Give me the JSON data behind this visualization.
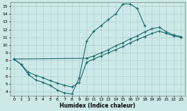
{
  "xlabel": "Humidex (Indice chaleur)",
  "xlim": [
    -0.5,
    23.5
  ],
  "ylim": [
    3.5,
    15.5
  ],
  "xticks": [
    0,
    1,
    2,
    3,
    4,
    5,
    6,
    7,
    8,
    9,
    10,
    11,
    12,
    13,
    14,
    15,
    16,
    17,
    18,
    19,
    20,
    21,
    22,
    23
  ],
  "yticks": [
    4,
    5,
    6,
    7,
    8,
    9,
    10,
    11,
    12,
    13,
    14,
    15
  ],
  "bg_color": "#cce8e8",
  "grid_color": "#b0d0d0",
  "line_color": "#1a6b6b",
  "line1_x": [
    0,
    1,
    2,
    3,
    4,
    5,
    6,
    7,
    8,
    9,
    10,
    11,
    12,
    13,
    14,
    15,
    16,
    17,
    18
  ],
  "line1_y": [
    8.2,
    7.5,
    6.2,
    5.5,
    5.2,
    4.8,
    4.2,
    3.8,
    3.7,
    5.8,
    10.5,
    11.8,
    12.5,
    13.3,
    14.0,
    15.3,
    15.3,
    14.7,
    12.5
  ],
  "line2_x": [
    0,
    10,
    11,
    12,
    13,
    14,
    15,
    16,
    17,
    18,
    19,
    20,
    21,
    22,
    23
  ],
  "line2_y": [
    8.2,
    8.3,
    8.6,
    9.0,
    9.4,
    9.9,
    10.3,
    10.8,
    11.2,
    11.7,
    12.1,
    12.3,
    11.7,
    11.3,
    11.1
  ],
  "line3_x": [
    0,
    1,
    2,
    3,
    4,
    5,
    6,
    7,
    8,
    9,
    10,
    11,
    12,
    13,
    14,
    15,
    16,
    17,
    18,
    19,
    20,
    21,
    22,
    23
  ],
  "line3_y": [
    8.2,
    7.5,
    6.5,
    6.1,
    5.8,
    5.4,
    5.1,
    4.8,
    4.6,
    5.2,
    7.8,
    8.2,
    8.6,
    9.0,
    9.4,
    9.8,
    10.3,
    10.7,
    11.1,
    11.5,
    11.8,
    11.5,
    11.2,
    11.0
  ]
}
